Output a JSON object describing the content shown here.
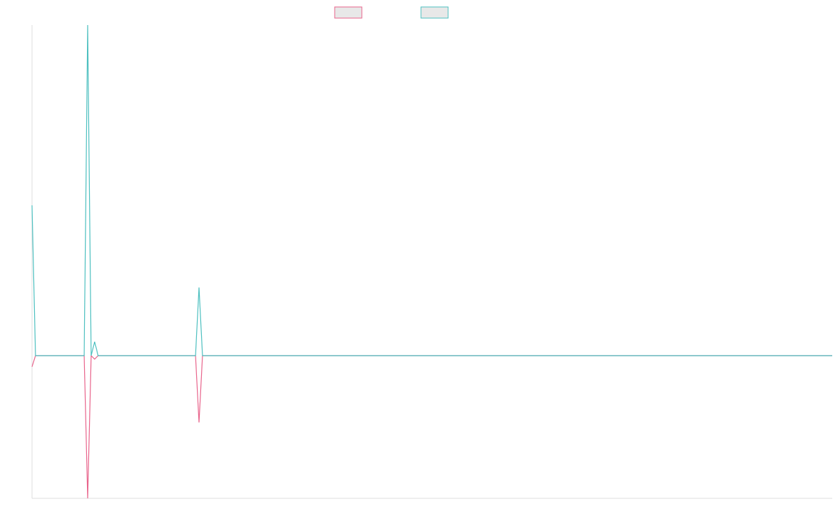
{
  "chart_data": {
    "type": "line",
    "x": [
      0,
      1,
      15,
      16,
      17,
      18,
      19,
      47,
      48,
      49,
      230
    ],
    "series": [
      {
        "color": "#e8628a",
        "values": [
          -16,
          0,
          0,
          -205,
          0,
          -5,
          0,
          0,
          -96,
          0,
          0
        ]
      },
      {
        "color": "#4bbfbf",
        "values": [
          216,
          0,
          0,
          475,
          0,
          20,
          0,
          0,
          98,
          0,
          0
        ]
      }
    ],
    "xlim": [
      0,
      230
    ],
    "ylim": [
      -205,
      475
    ]
  }
}
